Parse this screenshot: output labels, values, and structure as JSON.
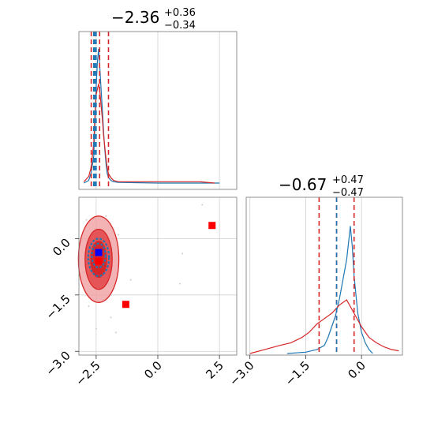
{
  "colors": {
    "blue": "#1f77b4",
    "red": "#d62728",
    "red_fill_light": "#f0a0a2",
    "red_fill_mid": "#e34a4c",
    "marker_red": "#ff0000",
    "marker_blue": "#0000ff"
  },
  "chart_data": [
    {
      "type": "histogram",
      "panel": "top-left",
      "title": {
        "median": "−2.36",
        "upper": "+0.36",
        "lower": "−0.34"
      },
      "xlim": [
        -3.2,
        3.2
      ],
      "grid": true,
      "series": [
        {
          "color": "#1f77b4",
          "x": [
            -3.0,
            -2.8,
            -2.7,
            -2.6,
            -2.55,
            -2.5,
            -2.45,
            -2.4,
            -2.35,
            -2.3,
            -2.25,
            -2.2,
            -2.15,
            -2.1,
            -2.05,
            -2.0,
            -1.9,
            -1.8,
            -1.6,
            0.0,
            2.5
          ],
          "density": [
            0.0,
            0.02,
            0.08,
            0.2,
            0.45,
            0.72,
            0.9,
            1.0,
            0.85,
            0.7,
            0.55,
            0.38,
            0.25,
            0.14,
            0.07,
            0.04,
            0.02,
            0.01,
            0.005,
            0.0,
            0.0
          ]
        },
        {
          "color": "#d62728",
          "x": [
            -3.0,
            -2.8,
            -2.7,
            -2.6,
            -2.55,
            -2.5,
            -2.45,
            -2.4,
            -2.35,
            -2.3,
            -2.25,
            -2.2,
            -2.15,
            -2.1,
            -2.05,
            -2.0,
            -1.9,
            -1.8,
            -1.6,
            0.0,
            1.7,
            2.3
          ],
          "density": [
            0.01,
            0.05,
            0.12,
            0.3,
            0.5,
            0.66,
            0.7,
            0.74,
            0.68,
            0.58,
            0.48,
            0.35,
            0.27,
            0.18,
            0.11,
            0.07,
            0.04,
            0.02,
            0.01,
            0.01,
            0.01,
            0.0
          ]
        }
      ],
      "quantiles": [
        {
          "color": "#d62728",
          "x": [
            -2.7,
            -2.36,
            -2.0
          ]
        },
        {
          "color": "#1f77b4",
          "x": [
            -2.6,
            -2.55,
            -2.5
          ]
        }
      ],
      "xticks": [
        -2.5,
        0.0,
        2.5
      ]
    },
    {
      "type": "scatter",
      "panel": "bottom-left",
      "xlim": [
        -3.2,
        3.2
      ],
      "ylim": [
        -3.1,
        1.1
      ],
      "grid": true,
      "xticks": [
        -2.5,
        0.0,
        2.5
      ],
      "xticklabels": [
        "−2.5",
        "0.0",
        "2.5"
      ],
      "yticks": [
        0.0,
        -1.5,
        -3.0
      ],
      "yticklabels": [
        "0.0",
        "−1.5",
        "−3.0"
      ],
      "contours_red": [
        {
          "cx": -2.4,
          "cy": -0.55,
          "rx": 0.82,
          "ry": 1.15,
          "level": "outer"
        },
        {
          "cx": -2.4,
          "cy": -0.55,
          "rx": 0.55,
          "ry": 0.8,
          "level": "mid"
        },
        {
          "cx": -2.4,
          "cy": -0.55,
          "rx": 0.32,
          "ry": 0.48,
          "level": "inner"
        }
      ],
      "contours_blue": [
        {
          "cx": -2.4,
          "cy": -0.5,
          "rx": 0.42,
          "ry": 0.5
        },
        {
          "cx": -2.4,
          "cy": -0.45,
          "rx": 0.28,
          "ry": 0.32
        }
      ],
      "markers": [
        {
          "x": 2.2,
          "y": 0.35,
          "color": "#ff0000"
        },
        {
          "x": -1.3,
          "y": -1.75,
          "color": "#ff0000"
        },
        {
          "x": -2.4,
          "y": -0.6,
          "color": "#ff0000"
        },
        {
          "x": -2.4,
          "y": -0.37,
          "color": "#0000ff"
        }
      ]
    },
    {
      "type": "histogram",
      "panel": "bottom-right",
      "title": {
        "median": "−0.67",
        "upper": "+0.47",
        "lower": "−0.47"
      },
      "xlim": [
        -3.1,
        1.1
      ],
      "grid": true,
      "xticks": [
        -3.0,
        -1.5,
        0.0
      ],
      "xticklabels": [
        "−3.0",
        "−1.5",
        "0.0"
      ],
      "series": [
        {
          "color": "#1f77b4",
          "x": [
            -2.0,
            -1.5,
            -1.2,
            -1.0,
            -0.9,
            -0.8,
            -0.7,
            -0.6,
            -0.5,
            -0.4,
            -0.35,
            -0.3,
            -0.25,
            -0.2,
            -0.1,
            0.0,
            0.1,
            0.2,
            0.3
          ],
          "density": [
            0.0,
            0.01,
            0.03,
            0.06,
            0.12,
            0.2,
            0.28,
            0.4,
            0.55,
            0.7,
            0.82,
            0.95,
            0.8,
            0.58,
            0.3,
            0.16,
            0.08,
            0.03,
            0.0
          ]
        },
        {
          "color": "#d62728",
          "x": [
            -3.0,
            -2.6,
            -2.2,
            -1.9,
            -1.6,
            -1.4,
            -1.2,
            -1.0,
            -0.8,
            -0.6,
            -0.4,
            -0.2,
            0.0,
            0.2,
            0.4,
            0.6,
            0.8,
            1.0
          ],
          "density": [
            0.0,
            0.03,
            0.06,
            0.08,
            0.12,
            0.16,
            0.22,
            0.26,
            0.3,
            0.36,
            0.4,
            0.3,
            0.2,
            0.12,
            0.08,
            0.05,
            0.03,
            0.02
          ]
        }
      ],
      "quantiles": [
        {
          "color": "#d62728",
          "x": [
            -1.14,
            -0.67,
            -0.2
          ]
        },
        {
          "color": "#1f77b4",
          "x": [
            -0.67
          ]
        }
      ]
    }
  ]
}
